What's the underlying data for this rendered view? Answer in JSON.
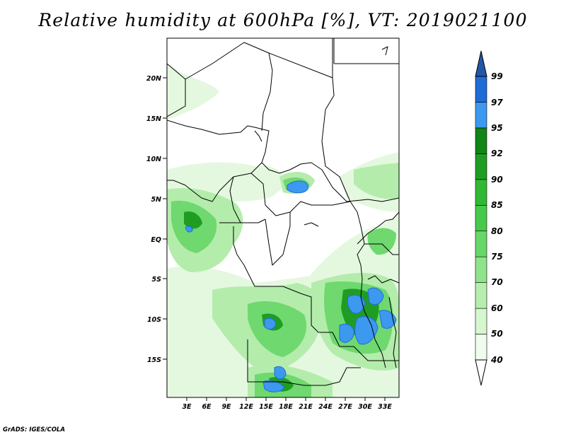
{
  "title": "Relative humidity at 600hPa [%], VT: 2019021100",
  "credit": "GrADS: IGES/COLA",
  "lat_labels": [
    "20N",
    "15N",
    "10N",
    "5N",
    "EQ",
    "5S",
    "10S",
    "15S"
  ],
  "lon_labels": [
    "3E",
    "6E",
    "9E",
    "12E",
    "15E",
    "18E",
    "21E",
    "24E",
    "27E",
    "30E",
    "33E"
  ],
  "colorbar": {
    "levels": [
      "40",
      "50",
      "60",
      "70",
      "75",
      "80",
      "85",
      "90",
      "92",
      "95",
      "97",
      "99"
    ],
    "colors": [
      "#ffffff",
      "#f0fcee",
      "#d6f6d0",
      "#b6eeae",
      "#8fe38b",
      "#68d769",
      "#47ca4c",
      "#31b934",
      "#1f9d23",
      "#118516",
      "#3d98ef",
      "#1f6bd8",
      "#2357a6"
    ]
  }
}
